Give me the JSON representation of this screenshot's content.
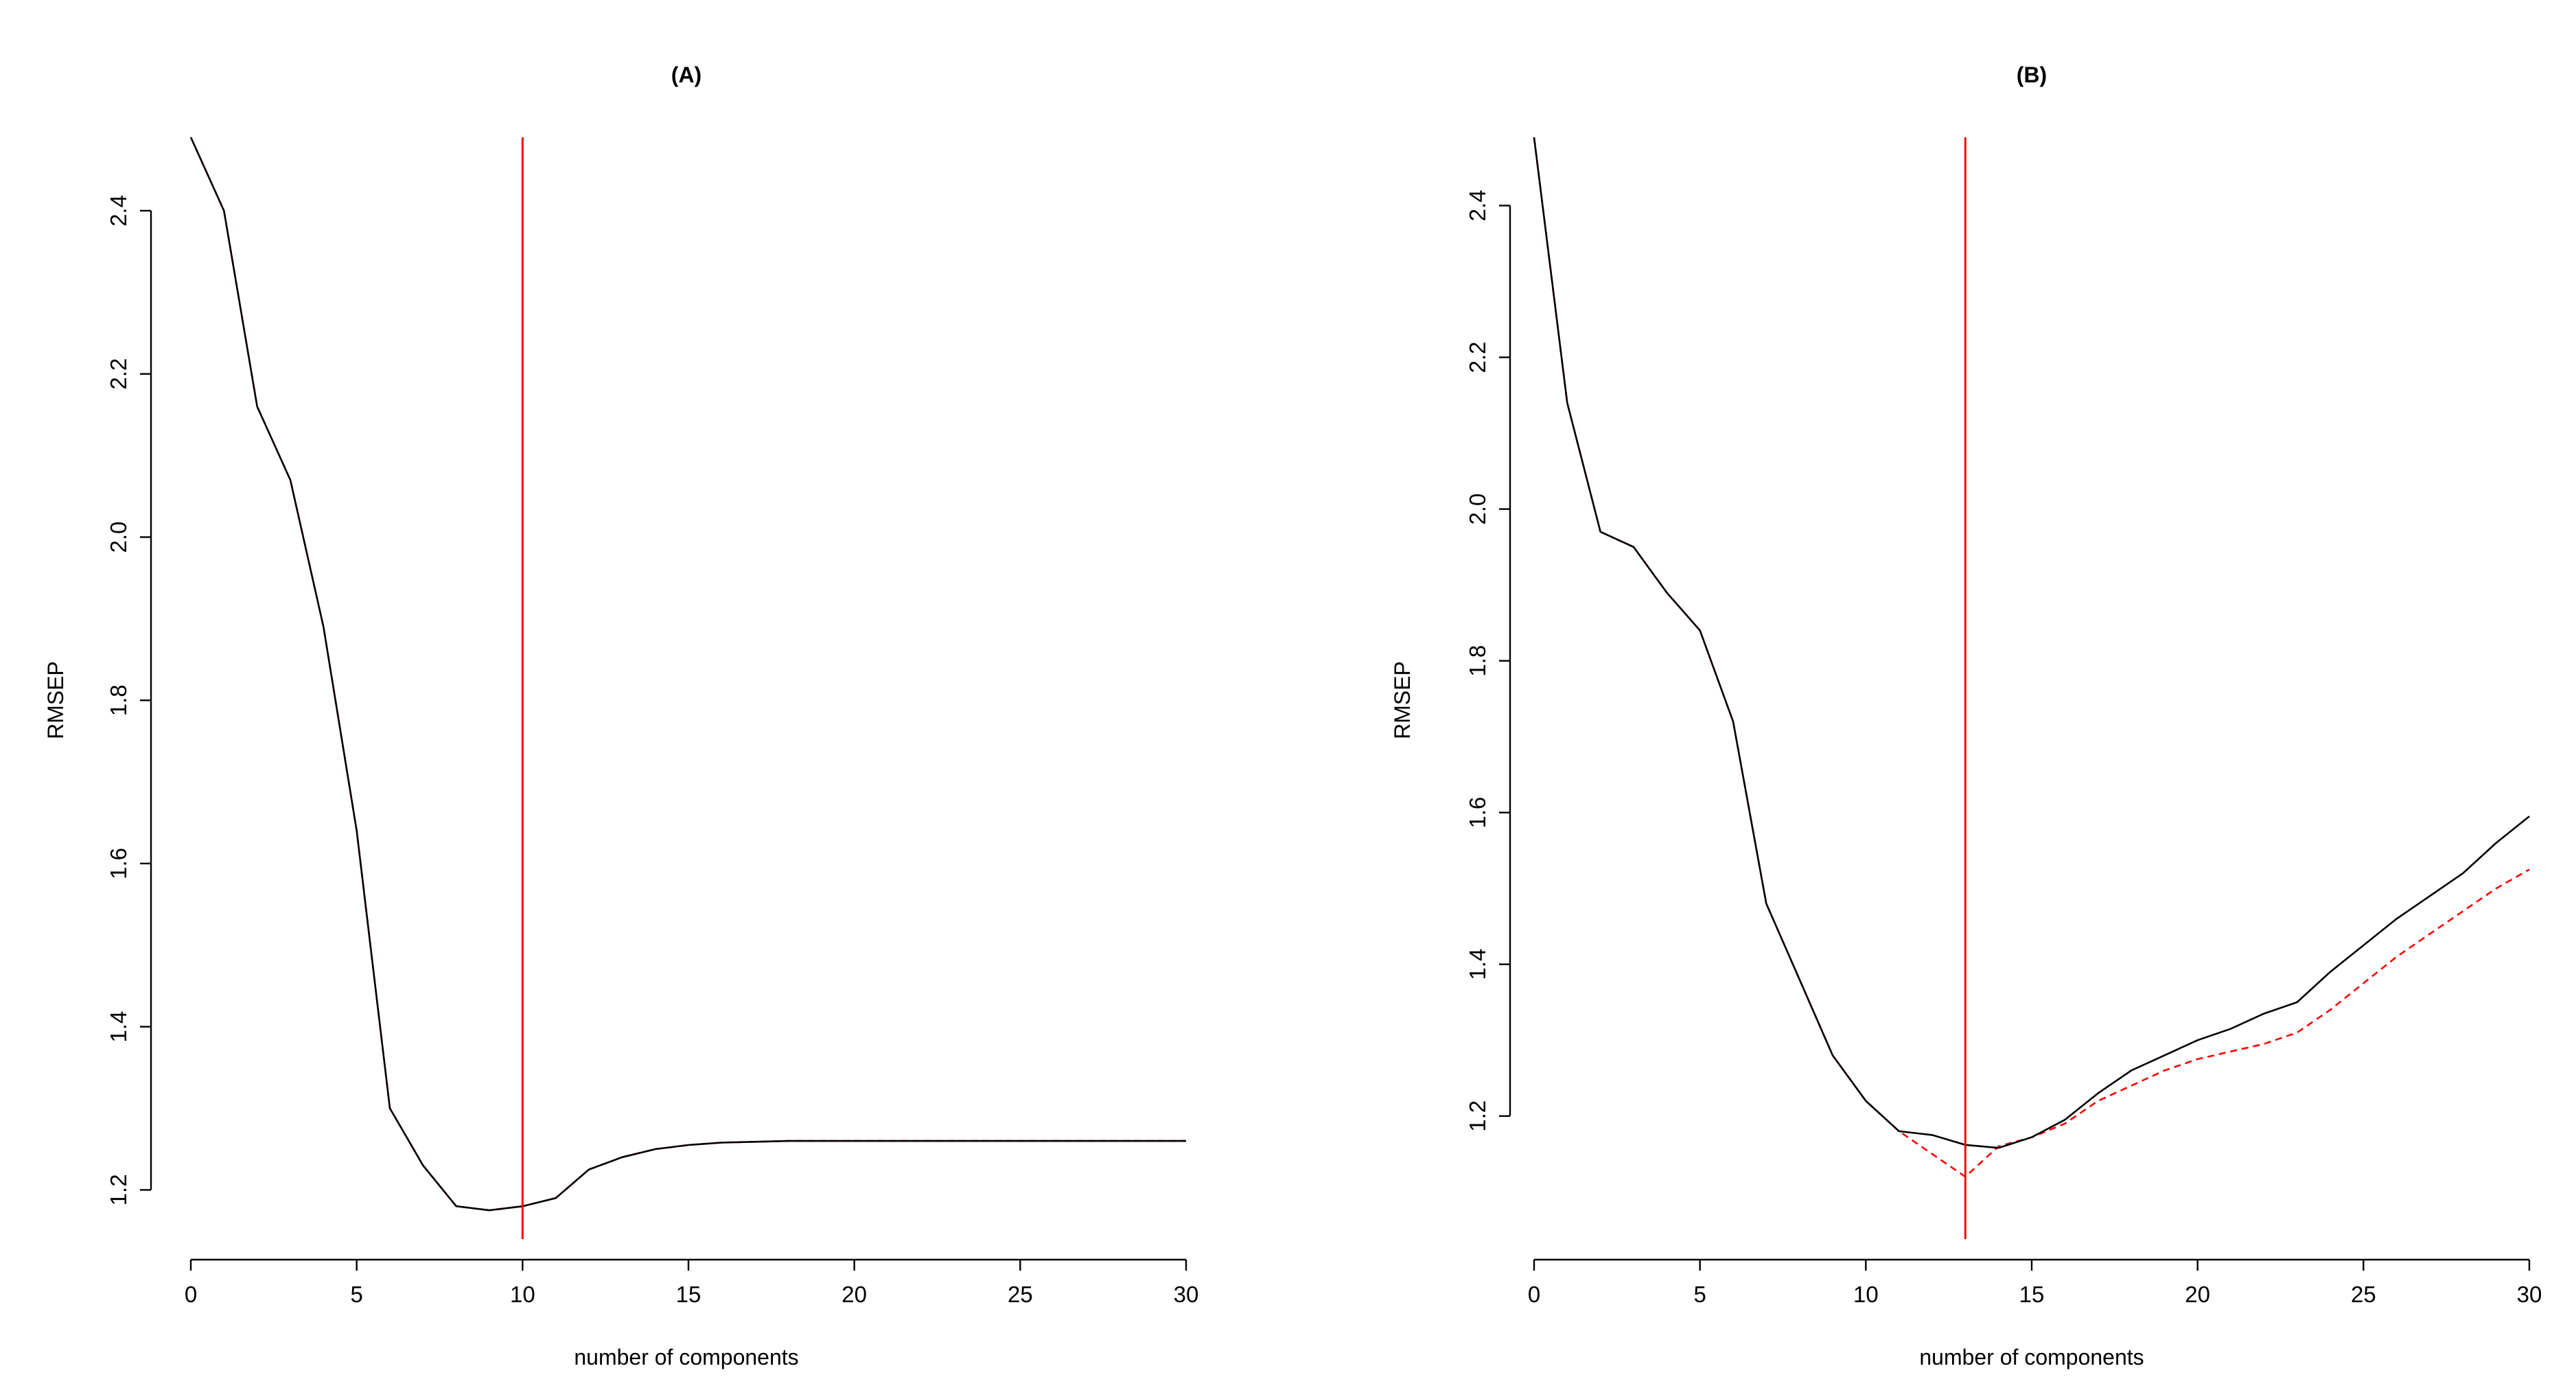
{
  "chart_data": [
    {
      "type": "line",
      "title": "(A)",
      "xlabel": "number of components",
      "ylabel": "RMSEP",
      "xlim": [
        0,
        30
      ],
      "ylim": [
        1.165,
        2.49
      ],
      "xticks": [
        0,
        5,
        10,
        15,
        20,
        25,
        30
      ],
      "yticks": [
        1.2,
        1.4,
        1.6,
        1.8,
        2.0,
        2.2,
        2.4
      ],
      "x": [
        0,
        1,
        2,
        3,
        4,
        5,
        6,
        7,
        8,
        9,
        10,
        11,
        12,
        13,
        14,
        15,
        16,
        17,
        18,
        19,
        20,
        21,
        22,
        23,
        24,
        25,
        26,
        27,
        28,
        29,
        30
      ],
      "series": [
        {
          "color": "#000000",
          "style": "solid",
          "values": [
            2.49,
            2.4,
            2.16,
            2.07,
            1.89,
            1.64,
            1.3,
            1.23,
            1.18,
            1.175,
            1.18,
            1.19,
            1.225,
            1.24,
            1.25,
            1.255,
            1.258,
            1.259,
            1.26,
            1.26,
            1.26,
            1.26,
            1.26,
            1.26,
            1.26,
            1.26,
            1.26,
            1.26,
            1.26,
            1.26,
            1.26
          ]
        },
        {
          "color": "#ff0000",
          "style": "dashed",
          "values": [
            2.49,
            2.4,
            2.16,
            2.07,
            1.89,
            1.64,
            1.3,
            1.23,
            1.18,
            1.175,
            1.18,
            1.19,
            1.225,
            1.24,
            1.25,
            1.255,
            1.258,
            1.259,
            1.26,
            1.26,
            1.26,
            1.26,
            1.26,
            1.26,
            1.26,
            1.26,
            1.26,
            1.26,
            1.26,
            1.26,
            1.26
          ]
        }
      ],
      "vline": {
        "x": 10,
        "color": "#ff0000"
      }
    },
    {
      "type": "line",
      "title": "(B)",
      "xlabel": "number of components",
      "ylabel": "RMSEP",
      "xlim": [
        0,
        30
      ],
      "ylim": [
        1.065,
        2.49
      ],
      "xticks": [
        0,
        5,
        10,
        15,
        20,
        25,
        30
      ],
      "yticks": [
        1.2,
        1.4,
        1.6,
        1.8,
        2.0,
        2.2,
        2.4
      ],
      "x": [
        0,
        1,
        2,
        3,
        4,
        5,
        6,
        7,
        8,
        9,
        10,
        11,
        12,
        13,
        14,
        15,
        16,
        17,
        18,
        19,
        20,
        21,
        22,
        23,
        24,
        25,
        26,
        27,
        28,
        29,
        30
      ],
      "series": [
        {
          "color": "#000000",
          "style": "solid",
          "values": [
            2.49,
            2.14,
            1.97,
            1.95,
            1.89,
            1.84,
            1.72,
            1.48,
            1.38,
            1.28,
            1.22,
            1.18,
            1.175,
            1.162,
            1.158,
            1.172,
            1.195,
            1.23,
            1.26,
            1.28,
            1.3,
            1.315,
            1.335,
            1.35,
            1.39,
            1.425,
            1.46,
            1.49,
            1.52,
            1.56,
            1.595
          ]
        },
        {
          "color": "#ff0000",
          "style": "dashed",
          "values": [
            2.49,
            2.14,
            1.97,
            1.95,
            1.89,
            1.84,
            1.72,
            1.48,
            1.38,
            1.28,
            1.22,
            1.18,
            1.15,
            1.12,
            1.16,
            1.172,
            1.19,
            1.22,
            1.24,
            1.26,
            1.275,
            1.285,
            1.295,
            1.31,
            1.34,
            1.375,
            1.41,
            1.44,
            1.47,
            1.5,
            1.525
          ]
        }
      ],
      "vline": {
        "x": 13,
        "color": "#ff0000"
      }
    }
  ]
}
